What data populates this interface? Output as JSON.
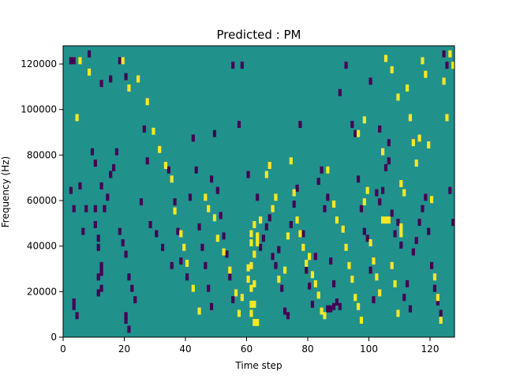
{
  "chart_data": {
    "type": "heatmap",
    "title": "Predicted : PM",
    "xlabel": "Time step",
    "ylabel": "Frequency (Hz)",
    "xlim": [
      0,
      128
    ],
    "ylim": [
      0,
      128000
    ],
    "x_ticks": [
      0,
      20,
      40,
      60,
      80,
      100,
      120
    ],
    "y_ticks": [
      0,
      20000,
      40000,
      60000,
      80000,
      100000,
      120000
    ],
    "n_time_steps": 128,
    "n_freq_bins": 128,
    "colormap": {
      "background": "#21918c",
      "low": "#440154",
      "high": "#fde725"
    },
    "low_cells": [
      [
        2,
        120800
      ],
      [
        3,
        120800
      ],
      [
        8,
        123000
      ],
      [
        5,
        65000
      ],
      [
        6,
        45000
      ],
      [
        7,
        55000
      ],
      [
        3,
        55000
      ],
      [
        2,
        63000
      ],
      [
        3,
        12000
      ],
      [
        4,
        8000
      ],
      [
        3,
        14000
      ],
      [
        9,
        80000
      ],
      [
        10,
        75000
      ],
      [
        10,
        55000
      ],
      [
        10,
        48000
      ],
      [
        11,
        42000
      ],
      [
        11,
        38000
      ],
      [
        12,
        30000
      ],
      [
        12,
        27000
      ],
      [
        11,
        25000
      ],
      [
        12,
        20000
      ],
      [
        11,
        18000
      ],
      [
        13,
        55000
      ],
      [
        14,
        60000
      ],
      [
        12,
        65000
      ],
      [
        15,
        70000
      ],
      [
        16,
        73000
      ],
      [
        17,
        80000
      ],
      [
        18,
        45000
      ],
      [
        19,
        40000
      ],
      [
        20,
        35000
      ],
      [
        21,
        25000
      ],
      [
        22,
        20000
      ],
      [
        23,
        15000
      ],
      [
        20,
        8000
      ],
      [
        21,
        2000
      ],
      [
        20,
        6000
      ],
      [
        12,
        110000
      ],
      [
        15,
        112000
      ],
      [
        18,
        120000
      ],
      [
        20,
        113000
      ],
      [
        26,
        90000
      ],
      [
        27,
        76000
      ],
      [
        25,
        58000
      ],
      [
        28,
        48000
      ],
      [
        30,
        44000
      ],
      [
        32,
        38000
      ],
      [
        35,
        30000
      ],
      [
        36,
        58000
      ],
      [
        34,
        72000
      ],
      [
        37,
        45000
      ],
      [
        38,
        32000
      ],
      [
        40,
        25000
      ],
      [
        41,
        60000
      ],
      [
        42,
        86000
      ],
      [
        43,
        72000
      ],
      [
        44,
        47000
      ],
      [
        45,
        38000
      ],
      [
        46,
        30000
      ],
      [
        47,
        20000
      ],
      [
        48,
        12000
      ],
      [
        48,
        68000
      ],
      [
        49,
        88000
      ],
      [
        50,
        63000
      ],
      [
        51,
        52000
      ],
      [
        52,
        43000
      ],
      [
        53,
        35000
      ],
      [
        54,
        25000
      ],
      [
        55,
        15000
      ],
      [
        55,
        118000
      ],
      [
        58,
        118000
      ],
      [
        57,
        92000
      ],
      [
        60,
        70000
      ],
      [
        63,
        60000
      ],
      [
        64,
        38000
      ],
      [
        65,
        42000
      ],
      [
        66,
        47000
      ],
      [
        67,
        51000
      ],
      [
        68,
        34000
      ],
      [
        69,
        30000
      ],
      [
        70,
        37000
      ],
      [
        71,
        20000
      ],
      [
        72,
        10000
      ],
      [
        73,
        8000
      ],
      [
        74,
        48000
      ],
      [
        75,
        57000
      ],
      [
        76,
        64000
      ],
      [
        77,
        92000
      ],
      [
        78,
        44000
      ],
      [
        79,
        28000
      ],
      [
        80,
        21000
      ],
      [
        81,
        13000
      ],
      [
        82,
        34000
      ],
      [
        83,
        67000
      ],
      [
        84,
        72000
      ],
      [
        85,
        55000
      ],
      [
        86,
        60000
      ],
      [
        87,
        32000
      ],
      [
        88,
        22000
      ],
      [
        89,
        14000
      ],
      [
        88,
        12000
      ],
      [
        90,
        12000
      ],
      [
        86,
        11000
      ],
      [
        87,
        11000
      ],
      [
        90,
        106000
      ],
      [
        92,
        118000
      ],
      [
        94,
        92000
      ],
      [
        95,
        88000
      ],
      [
        96,
        68000
      ],
      [
        97,
        55000
      ],
      [
        98,
        45000
      ],
      [
        99,
        42000
      ],
      [
        100,
        28000
      ],
      [
        101,
        15000
      ],
      [
        102,
        62000
      ],
      [
        103,
        58000
      ],
      [
        104,
        63000
      ],
      [
        105,
        73000
      ],
      [
        106,
        76000
      ],
      [
        107,
        53000
      ],
      [
        108,
        44000
      ],
      [
        109,
        49000
      ],
      [
        110,
        39000
      ],
      [
        111,
        16000
      ],
      [
        112,
        22000
      ],
      [
        113,
        11000
      ],
      [
        114,
        36000
      ],
      [
        115,
        41000
      ],
      [
        116,
        49000
      ],
      [
        117,
        55000
      ],
      [
        118,
        60000
      ],
      [
        119,
        45000
      ],
      [
        120,
        30000
      ],
      [
        121,
        20000
      ],
      [
        122,
        14000
      ],
      [
        123,
        9000
      ],
      [
        124,
        123000
      ],
      [
        125,
        118000
      ],
      [
        126,
        63000
      ],
      [
        127,
        49000
      ],
      [
        100,
        111000
      ],
      [
        103,
        90000
      ],
      [
        106,
        84000
      ]
    ],
    "high_cells": [
      [
        5,
        120000
      ],
      [
        4,
        95000
      ],
      [
        8,
        115000
      ],
      [
        19,
        120000
      ],
      [
        21,
        108000
      ],
      [
        24,
        112000
      ],
      [
        27,
        102000
      ],
      [
        29,
        89000
      ],
      [
        31,
        81000
      ],
      [
        33,
        74000
      ],
      [
        35,
        68000
      ],
      [
        36,
        54000
      ],
      [
        38,
        44000
      ],
      [
        39,
        38000
      ],
      [
        40,
        31000
      ],
      [
        42,
        20000
      ],
      [
        44,
        10000
      ],
      [
        46,
        60000
      ],
      [
        47,
        55000
      ],
      [
        49,
        51000
      ],
      [
        50,
        42000
      ],
      [
        52,
        36000
      ],
      [
        54,
        28000
      ],
      [
        56,
        18000
      ],
      [
        57,
        9000
      ],
      [
        58,
        16000
      ],
      [
        60,
        29000
      ],
      [
        61,
        30000
      ],
      [
        62,
        35000
      ],
      [
        63,
        40000
      ],
      [
        61,
        20000
      ],
      [
        62,
        22000
      ],
      [
        60,
        24000
      ],
      [
        61,
        13000
      ],
      [
        62,
        13000
      ],
      [
        61,
        9000
      ],
      [
        62,
        5000
      ],
      [
        63,
        5000
      ],
      [
        61,
        40000
      ],
      [
        61,
        44000
      ],
      [
        62,
        48000
      ],
      [
        63,
        43000
      ],
      [
        64,
        50000
      ],
      [
        66,
        70000
      ],
      [
        67,
        74000
      ],
      [
        68,
        55000
      ],
      [
        69,
        60000
      ],
      [
        70,
        24000
      ],
      [
        72,
        28000
      ],
      [
        73,
        43000
      ],
      [
        74,
        76000
      ],
      [
        75,
        62000
      ],
      [
        76,
        50000
      ],
      [
        77,
        44000
      ],
      [
        78,
        38000
      ],
      [
        79,
        31000
      ],
      [
        80,
        34000
      ],
      [
        81,
        26000
      ],
      [
        82,
        22000
      ],
      [
        83,
        17000
      ],
      [
        84,
        10000
      ],
      [
        85,
        8000
      ],
      [
        86,
        72000
      ],
      [
        88,
        57000
      ],
      [
        89,
        50000
      ],
      [
        91,
        46000
      ],
      [
        92,
        38000
      ],
      [
        93,
        30000
      ],
      [
        94,
        24000
      ],
      [
        95,
        16000
      ],
      [
        96,
        12000
      ],
      [
        97,
        6000
      ],
      [
        98,
        58000
      ],
      [
        99,
        63000
      ],
      [
        100,
        40000
      ],
      [
        101,
        32000
      ],
      [
        102,
        25000
      ],
      [
        103,
        18000
      ],
      [
        104,
        50000
      ],
      [
        105,
        50000
      ],
      [
        106,
        50000
      ],
      [
        107,
        30000
      ],
      [
        108,
        22000
      ],
      [
        109,
        9000
      ],
      [
        110,
        66000
      ],
      [
        111,
        62000
      ],
      [
        112,
        108000
      ],
      [
        113,
        95000
      ],
      [
        114,
        84000
      ],
      [
        115,
        75000
      ],
      [
        116,
        86000
      ],
      [
        117,
        120000
      ],
      [
        118,
        114000
      ],
      [
        119,
        83000
      ],
      [
        120,
        59000
      ],
      [
        121,
        25000
      ],
      [
        122,
        16000
      ],
      [
        123,
        6000
      ],
      [
        124,
        111000
      ],
      [
        125,
        95000
      ],
      [
        126,
        123000
      ],
      [
        127,
        118000
      ],
      [
        105,
        121000
      ],
      [
        107,
        116000
      ],
      [
        109,
        104000
      ],
      [
        96,
        88000
      ],
      [
        98,
        94000
      ],
      [
        104,
        80000
      ],
      [
        110,
        47000
      ],
      [
        110,
        44000
      ]
    ]
  }
}
